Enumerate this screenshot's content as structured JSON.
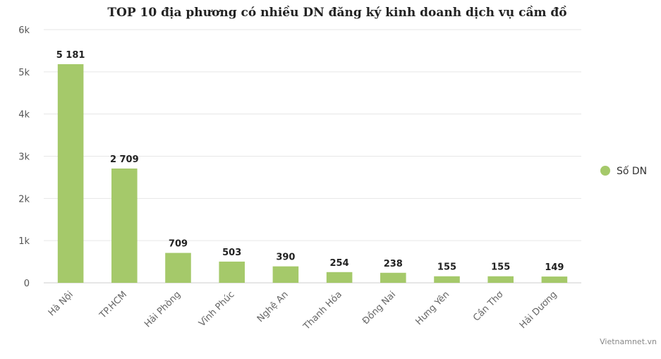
{
  "chart_data": {
    "type": "bar",
    "title": "TOP 10 địa phương có nhiều DN đăng ký kinh doanh dịch vụ cầm đồ",
    "categories": [
      "Hà Nội",
      "TP.HCM",
      "Hải Phòng",
      "Vĩnh Phúc",
      "Nghệ An",
      "Thanh Hóa",
      "Đồng Nai",
      "Hưng Yên",
      "Cần Thơ",
      "Hải Dương"
    ],
    "series": [
      {
        "name": "Số DN",
        "values": [
          5181,
          2709,
          709,
          503,
          390,
          254,
          238,
          155,
          155,
          149
        ],
        "data_labels": [
          "5 181",
          "2 709",
          "709",
          "503",
          "390",
          "254",
          "238",
          "155",
          "155",
          "149"
        ],
        "color": "#a5c96a"
      }
    ],
    "ylim": [
      0,
      6000
    ],
    "yticks": [
      0,
      1000,
      2000,
      3000,
      4000,
      5000,
      6000
    ],
    "ytick_labels": [
      "0",
      "1k",
      "2k",
      "3k",
      "4k",
      "5k",
      "6k"
    ],
    "xlabel": "",
    "ylabel": "",
    "grid": true,
    "legend_position": "right",
    "credit": "Vietnamnet.vn"
  }
}
